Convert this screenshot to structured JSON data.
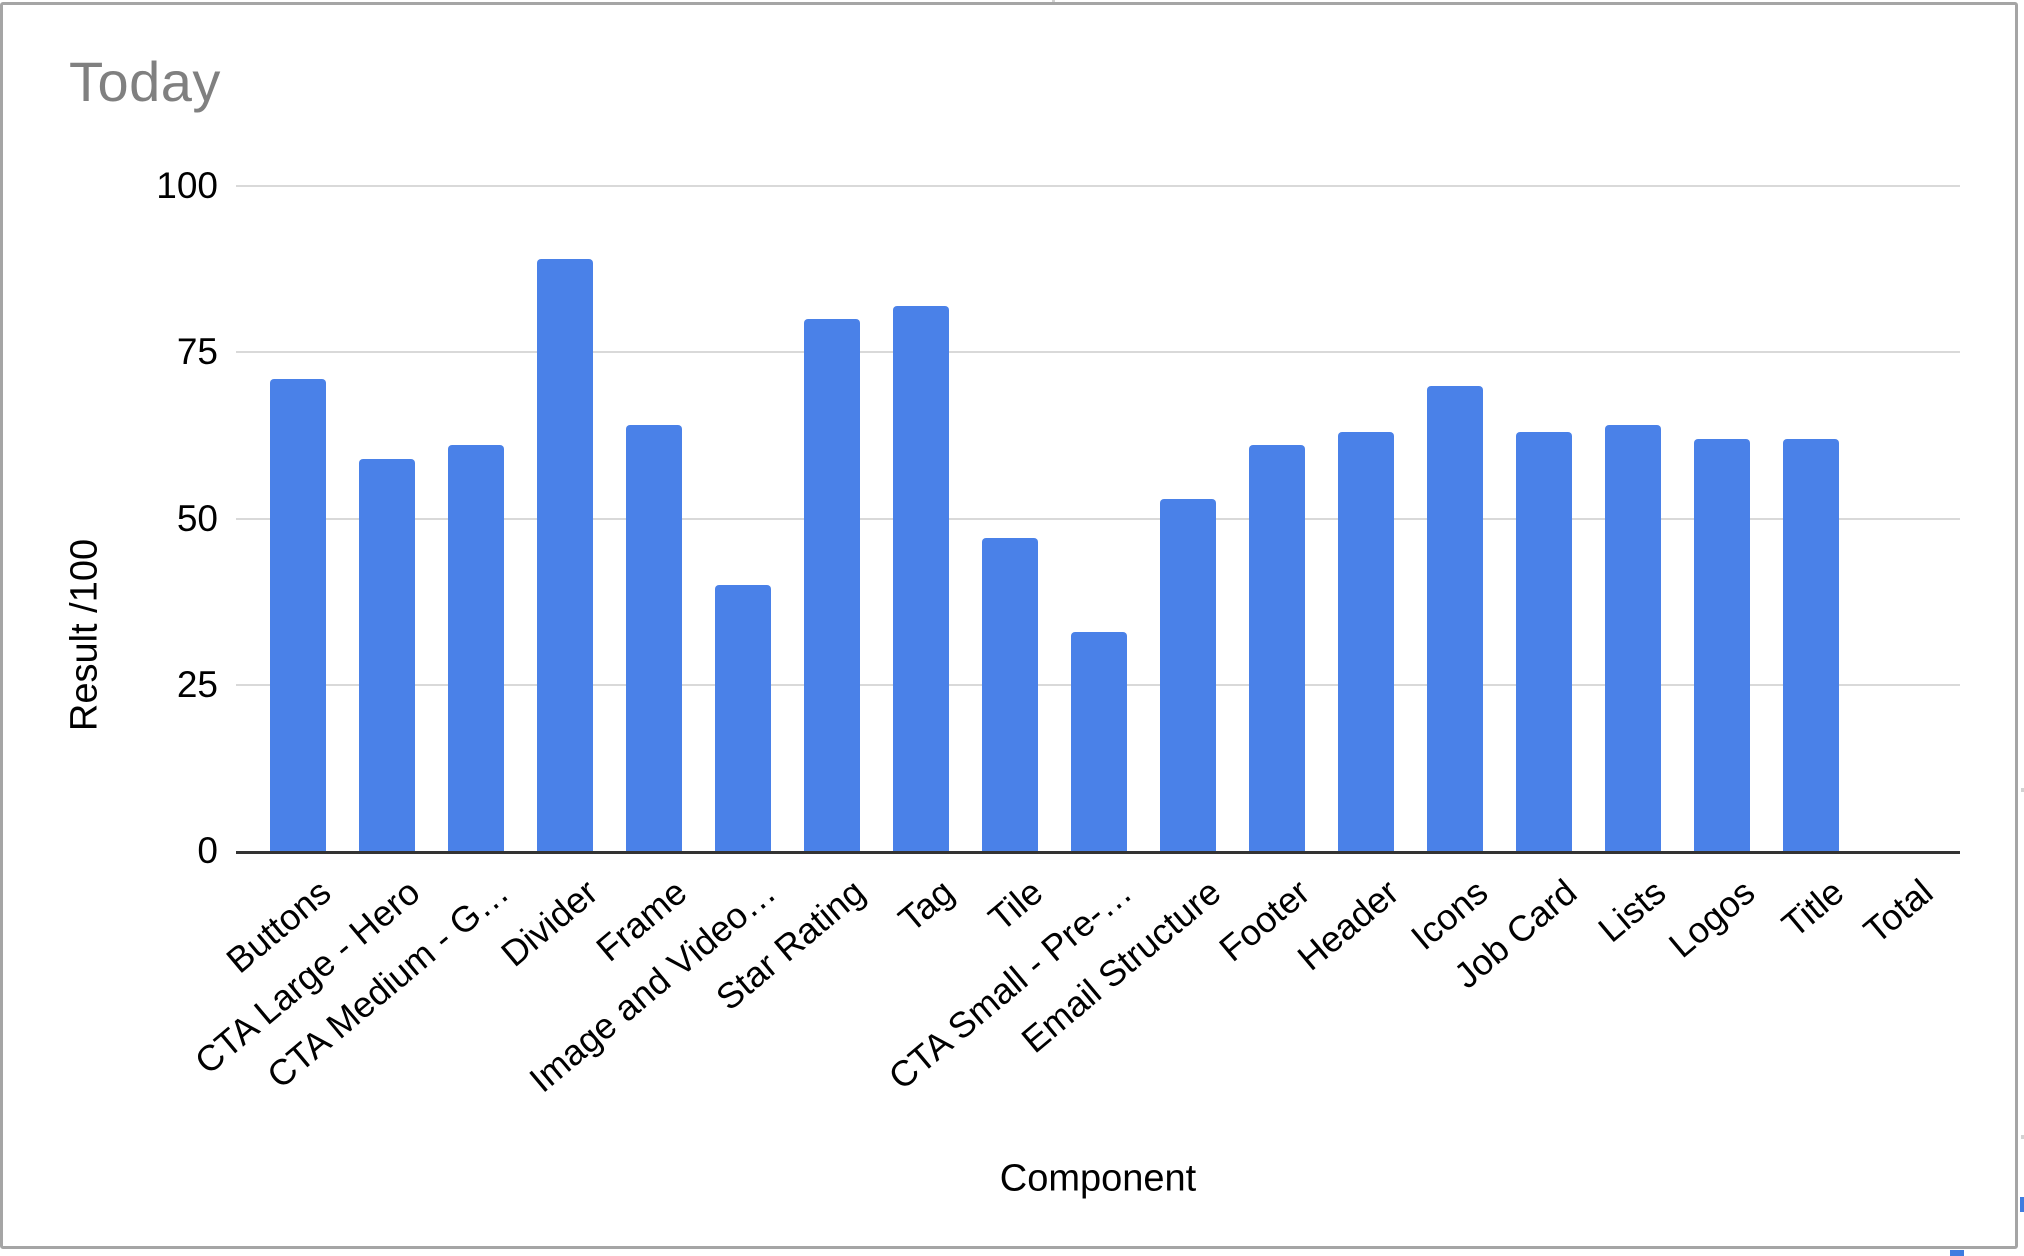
{
  "chart_data": {
    "type": "bar",
    "title": "Today",
    "xlabel": "Component",
    "ylabel": "Result /100",
    "categories": [
      "Buttons",
      "CTA Large - Hero",
      "CTA Medium - G…",
      "Divider",
      "Frame",
      "Image and Video…",
      "Star Rating",
      "Tag",
      "Tile",
      "CTA Small - Pre-…",
      "Email Structure",
      "Footer",
      "Header",
      "Icons",
      "Job Card",
      "Lists",
      "Logos",
      "Title",
      "Total"
    ],
    "values": [
      71,
      59,
      61,
      89,
      64,
      40,
      80,
      82,
      47,
      33,
      53,
      61,
      63,
      70,
      63,
      64,
      62,
      62,
      0
    ],
    "ylim": [
      0,
      100
    ],
    "yticks": [
      0,
      25,
      50,
      75,
      100
    ],
    "grid": true,
    "legend_position": "none",
    "bar_color": "#4a81e8",
    "gridline_color": "#d9d9d9",
    "axis_line_color": "#333333",
    "title_color": "#808080",
    "tick_label_color": "#000000"
  },
  "sheet": {
    "chart_border_color": "#a5a5a5",
    "selection_handle_color": "#3f7de0"
  }
}
